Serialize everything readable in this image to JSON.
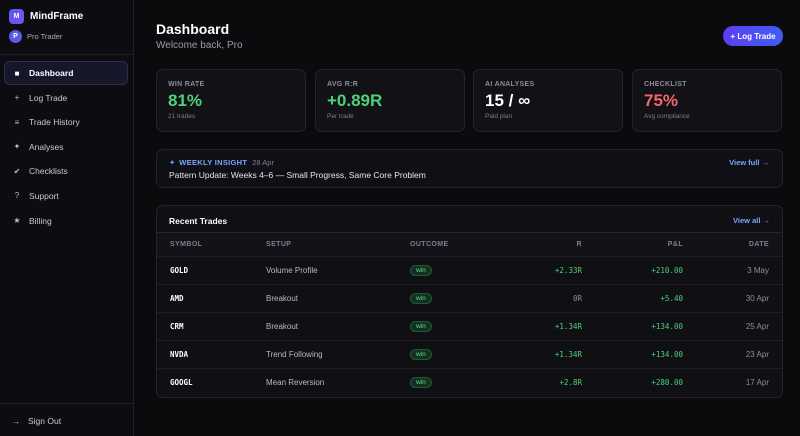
{
  "app": {
    "name": "MindFrame",
    "logo_letter": "M",
    "avatar_letter": "P",
    "plan_label": "Pro Trader"
  },
  "nav": {
    "items": [
      {
        "label": "Dashboard",
        "icon": "grid-square-icon",
        "glyph": "■",
        "active": true
      },
      {
        "label": "Log Trade",
        "icon": "plus-icon",
        "glyph": "+"
      },
      {
        "label": "Trade History",
        "icon": "list-icon",
        "glyph": "≡"
      },
      {
        "label": "Analyses",
        "icon": "sparkle-icon",
        "glyph": "✦"
      },
      {
        "label": "Checklists",
        "icon": "check-icon",
        "glyph": "✔"
      },
      {
        "label": "Support",
        "icon": "question-icon",
        "glyph": "?"
      },
      {
        "label": "Billing",
        "icon": "star-icon",
        "glyph": "★"
      }
    ],
    "signout_label": "Sign Out",
    "signout_glyph": "→"
  },
  "header": {
    "title": "Dashboard",
    "welcome": "Welcome back, Pro",
    "log_trade_button": "+ Log Trade"
  },
  "stats": [
    {
      "label": "WIN RATE",
      "value": "81%",
      "sub": "21 trades",
      "color": "#4cd27a"
    },
    {
      "label": "AVG R:R",
      "value": "+0.89R",
      "sub": "Per trade",
      "color": "#4cd27a"
    },
    {
      "label": "AI ANALYSES",
      "value": "15 / ∞",
      "sub": "Paid plan",
      "color": "#ffffff"
    },
    {
      "label": "CHECKLIST",
      "value": "75%",
      "sub": "Avg compliance",
      "color": "#f0676b"
    }
  ],
  "insight": {
    "icon": "✦",
    "label": "WEEKLY INSIGHT",
    "date": "28 Apr",
    "text": "Pattern Update: Weeks 4–6 — Small Progress, Same Core Problem",
    "link": "View full →"
  },
  "trades": {
    "title": "Recent Trades",
    "view_all": "View all →",
    "columns": [
      "SYMBOL",
      "SETUP",
      "OUTCOME",
      "R",
      "P&L",
      "DATE"
    ],
    "rows": [
      {
        "symbol": "GOLD",
        "setup": "Volume Profile",
        "outcome": "win",
        "r": "+2.33R",
        "pnl": "+210.00",
        "date": "3 May"
      },
      {
        "symbol": "AMD",
        "setup": "Breakout",
        "outcome": "win",
        "r": "0R",
        "pnl": "+5.40",
        "date": "30 Apr"
      },
      {
        "symbol": "CRM",
        "setup": "Breakout",
        "outcome": "win",
        "r": "+1.34R",
        "pnl": "+134.00",
        "date": "25 Apr"
      },
      {
        "symbol": "NVDA",
        "setup": "Trend Following",
        "outcome": "win",
        "r": "+1.34R",
        "pnl": "+134.00",
        "date": "23 Apr"
      },
      {
        "symbol": "GOOGL",
        "setup": "Mean Reversion",
        "outcome": "win",
        "r": "+2.8R",
        "pnl": "+280.00",
        "date": "17 Apr"
      }
    ]
  }
}
